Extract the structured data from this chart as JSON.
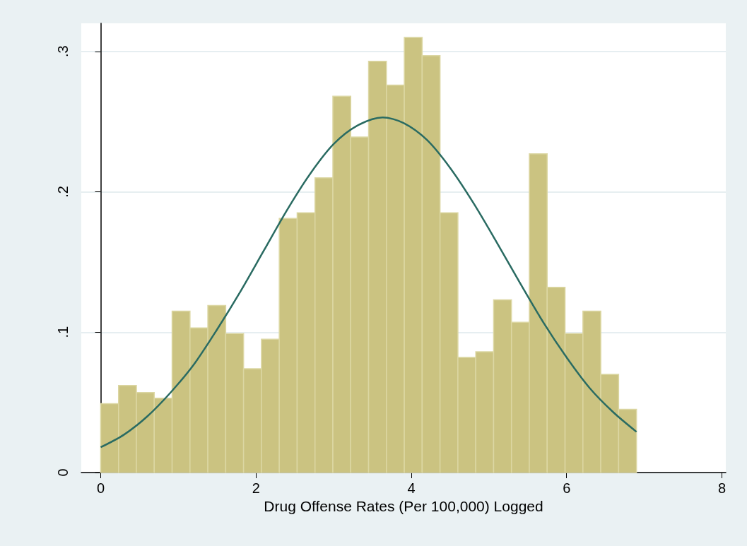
{
  "chart_data": {
    "type": "histogram",
    "xlabel": "Drug Offense Rates (Per 100,000) Logged",
    "xlim": [
      -0.25,
      8.05
    ],
    "xticks": [
      0,
      2,
      4,
      6,
      8
    ],
    "ylim": [
      0,
      0.32
    ],
    "yticks": [
      {
        "value": 0,
        "label": "0"
      },
      {
        "value": 0.1,
        "label": ".1"
      },
      {
        "value": 0.2,
        "label": ".2"
      },
      {
        "value": 0.3,
        "label": ".3"
      }
    ],
    "grid": "y",
    "series": [
      {
        "color": "#cbc381",
        "bins": [
          0,
          0.23,
          0.46,
          0.69,
          0.92,
          1.15,
          1.38,
          1.61,
          1.84,
          2.07,
          2.3,
          2.53,
          2.76,
          2.99,
          3.22,
          3.45,
          3.68,
          3.91,
          4.14,
          4.37,
          4.6,
          4.83,
          5.06,
          5.29,
          5.52,
          5.75,
          5.98,
          6.21,
          6.44,
          6.67,
          6.9
        ],
        "values": [
          0.049,
          0.062,
          0.057,
          0.053,
          0.115,
          0.103,
          0.119,
          0.099,
          0.074,
          0.095,
          0.181,
          0.185,
          0.21,
          0.268,
          0.239,
          0.293,
          0.276,
          0.31,
          0.297,
          0.185,
          0.082,
          0.086,
          0.123,
          0.107,
          0.227,
          0.132,
          0.099,
          0.115,
          0.07,
          0.045
        ]
      },
      {
        "type": "line",
        "color": "#2a6b62",
        "x": [
          0,
          0.3,
          0.6,
          0.9,
          1.2,
          1.5,
          1.8,
          2.1,
          2.4,
          2.7,
          3.0,
          3.3,
          3.63,
          3.9,
          4.2,
          4.5,
          4.8,
          5.1,
          5.4,
          5.7,
          6.0,
          6.3,
          6.6,
          6.9
        ],
        "values": [
          0.018,
          0.027,
          0.04,
          0.057,
          0.077,
          0.102,
          0.129,
          0.158,
          0.187,
          0.213,
          0.234,
          0.247,
          0.253,
          0.249,
          0.237,
          0.217,
          0.192,
          0.164,
          0.135,
          0.107,
          0.082,
          0.06,
          0.043,
          0.029
        ]
      }
    ]
  }
}
